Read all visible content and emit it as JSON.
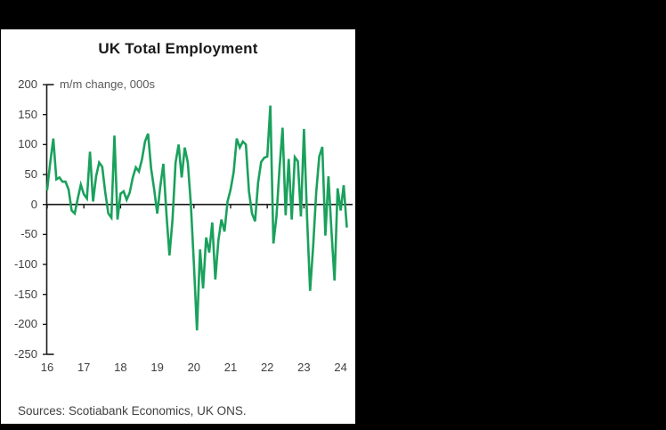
{
  "header": {
    "title": "UK Total Employment"
  },
  "annotation": {
    "label": "m/m change, 000s"
  },
  "footer": {
    "sources": "Sources: Scotiabank Economics, UK ONS."
  },
  "colors": {
    "background": "#000000",
    "panel": "#ffffff",
    "line": "#1aa15c",
    "axis": "#1a1a1a",
    "tick_label": "#404040",
    "annotation": "#595959"
  },
  "chart_data": {
    "type": "line",
    "title": "UK Total Employment",
    "subtitle": "m/m change, 000s",
    "xlabel": "",
    "ylabel": "m/m change, 000s",
    "ylim": [
      -250,
      200
    ],
    "y_ticks": [
      200,
      150,
      100,
      50,
      0,
      -50,
      -100,
      -150,
      -200,
      -250
    ],
    "x_tick_labels": [
      "16",
      "17",
      "18",
      "19",
      "20",
      "21",
      "22",
      "23",
      "24"
    ],
    "grid": false,
    "legend_position": "none",
    "zero_line": true,
    "series": [
      {
        "name": "UK total employment, m/m change (000s)",
        "color": "#1aa15c",
        "start": "2016-01",
        "frequency": "monthly",
        "values": [
          25,
          70,
          110,
          42,
          45,
          38,
          38,
          25,
          -10,
          -15,
          10,
          33,
          17,
          10,
          88,
          5,
          47,
          70,
          63,
          20,
          -15,
          -22,
          115,
          -25,
          18,
          22,
          8,
          20,
          45,
          62,
          55,
          75,
          105,
          118,
          60,
          25,
          -15,
          30,
          68,
          -15,
          -85,
          -25,
          70,
          100,
          45,
          95,
          70,
          0,
          -100,
          -210,
          -75,
          -140,
          -55,
          -80,
          -30,
          -125,
          -60,
          -25,
          -45,
          5,
          25,
          54,
          110,
          95,
          105,
          100,
          22,
          -15,
          -28,
          37,
          71,
          78,
          80,
          165,
          -65,
          -20,
          60,
          128,
          -18,
          76,
          -25,
          79,
          72,
          -20,
          126,
          -20,
          -144,
          -70,
          20,
          80,
          96,
          -52,
          47,
          -45,
          -127,
          27,
          -10,
          32,
          -37
        ]
      }
    ]
  }
}
